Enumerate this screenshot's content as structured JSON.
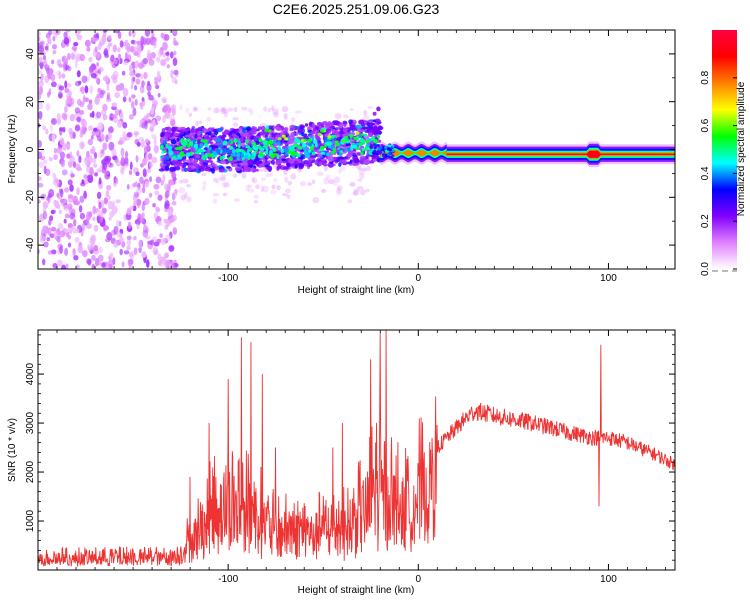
{
  "figure_title": "C2E6.2025.251.09.06.G23",
  "chart_data": [
    {
      "type": "heatmap",
      "name": "spectrogram",
      "xlabel": "Height of straight line (km)",
      "ylabel": "Frequency (Hz)",
      "xlim": [
        -200,
        135
      ],
      "ylim": [
        -50,
        50
      ],
      "xticks": [
        -100,
        0,
        100
      ],
      "xtick_labels": [
        "-100",
        "0",
        "100"
      ],
      "yticks": [
        -40,
        -20,
        0,
        20,
        40
      ],
      "ytick_labels": [
        "-40",
        "-20",
        "0",
        "20",
        "40"
      ],
      "colorbar": {
        "label": "Normalized spectral amplitude",
        "range": [
          0.0,
          1.0
        ],
        "ticks": [
          0.0,
          0.2,
          0.4,
          0.6,
          0.8
        ],
        "tick_labels": [
          "0.0",
          "0.2",
          "0.4",
          "0.6",
          "0.8"
        ],
        "colors": [
          "#ffffff",
          "#e080ff",
          "#8000ff",
          "#0000ff",
          "#00ffff",
          "#00ff00",
          "#ffff00",
          "#ff8000",
          "#ff0000",
          "#ff0040"
        ]
      },
      "features": [
        {
          "segment": "noise",
          "x_range": [
            -200,
            -135
          ],
          "freq_range": [
            -50,
            50
          ],
          "amplitude": 0.15
        },
        {
          "segment": "scintillating",
          "x_range": [
            -135,
            -20
          ],
          "freq_range": [
            -8,
            10
          ],
          "amplitude": 0.35
        },
        {
          "segment": "settling",
          "x_range": [
            -20,
            15
          ],
          "center_freq": -1.5,
          "amplitude": 0.75
        },
        {
          "segment": "stable",
          "x_range": [
            15,
            135
          ],
          "center_freq": -2,
          "amplitude": 0.9
        }
      ]
    },
    {
      "type": "line",
      "name": "snr",
      "xlabel": "Height of straight line (km)",
      "ylabel": "SNR (10 * v/v)",
      "xlim": [
        -200,
        135
      ],
      "ylim": [
        0,
        4900
      ],
      "xticks": [
        -100,
        0,
        100
      ],
      "xtick_labels": [
        "-100",
        "0",
        "100"
      ],
      "yticks": [
        1000,
        2000,
        3000,
        4000
      ],
      "ytick_labels": [
        "1000",
        "2000",
        "3000",
        "4000"
      ],
      "color": "#ee3333",
      "envelope": {
        "x": [
          -200,
          -130,
          -122,
          -105,
          -95,
          -85,
          -75,
          -55,
          -35,
          -22,
          -15,
          -8,
          5,
          15,
          25,
          30,
          40,
          60,
          80,
          92,
          100,
          110,
          125,
          135
        ],
        "y": [
          350,
          380,
          600,
          1500,
          1500,
          1300,
          900,
          900,
          1000,
          1900,
          2000,
          1700,
          2300,
          2700,
          3100,
          3250,
          3150,
          3000,
          2800,
          2700,
          2700,
          2600,
          2350,
          2150
        ]
      },
      "spikes": [
        {
          "x": -120,
          "y": 1900
        },
        {
          "x": -110,
          "y": 3000
        },
        {
          "x": -100,
          "y": 3900
        },
        {
          "x": -93,
          "y": 4750
        },
        {
          "x": -88,
          "y": 4650
        },
        {
          "x": -82,
          "y": 4000
        },
        {
          "x": -75,
          "y": 2500
        },
        {
          "x": -45,
          "y": 2500
        },
        {
          "x": -40,
          "y": 3000
        },
        {
          "x": -25,
          "y": 4300
        },
        {
          "x": -20,
          "y": 4850
        },
        {
          "x": -17,
          "y": 4900
        },
        {
          "x": 96,
          "y": 4600
        },
        {
          "x": 95,
          "y": 1300
        }
      ]
    }
  ]
}
